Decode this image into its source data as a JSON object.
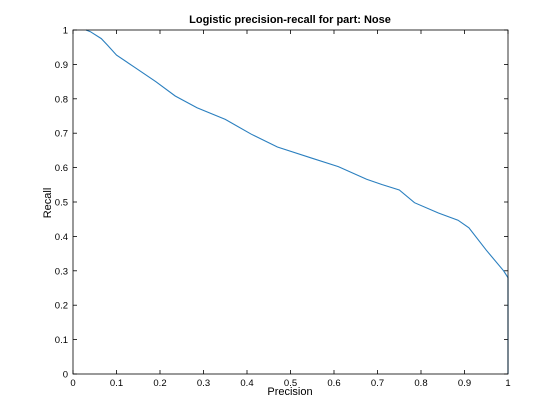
{
  "chart_data": {
    "type": "line",
    "title": "Logistic precision-recall for part: Nose",
    "xlabel": "Precision",
    "ylabel": "Recall",
    "xlim": [
      0,
      1
    ],
    "ylim": [
      0,
      1
    ],
    "xticks": [
      0,
      0.1,
      0.2,
      0.3,
      0.4,
      0.5,
      0.6,
      0.7,
      0.8,
      0.9,
      1
    ],
    "xtick_labels": [
      "0",
      "0.1",
      "0.2",
      "0.3",
      "0.4",
      "0.5",
      "0.6",
      "0.7",
      "0.8",
      "0.9",
      "1"
    ],
    "yticks": [
      0,
      0.1,
      0.2,
      0.3,
      0.4,
      0.5,
      0.6,
      0.7,
      0.8,
      0.9,
      1
    ],
    "ytick_labels": [
      "0",
      "0.1",
      "0.2",
      "0.3",
      "0.4",
      "0.5",
      "0.6",
      "0.7",
      "0.8",
      "0.9",
      "1"
    ],
    "grid": false,
    "series": [
      {
        "color": "#2a7fbf",
        "x": [
          0.03,
          0.04,
          0.065,
          0.08,
          0.1,
          0.14,
          0.19,
          0.235,
          0.285,
          0.35,
          0.41,
          0.47,
          0.55,
          0.61,
          0.675,
          0.71,
          0.75,
          0.785,
          0.84,
          0.885,
          0.91,
          0.95,
          0.99,
          1.0,
          1.0
        ],
        "y": [
          1.0,
          0.995,
          0.975,
          0.955,
          0.927,
          0.893,
          0.85,
          0.808,
          0.774,
          0.74,
          0.697,
          0.66,
          0.627,
          0.603,
          0.566,
          0.551,
          0.535,
          0.498,
          0.468,
          0.447,
          0.425,
          0.36,
          0.3,
          0.28,
          0.0
        ]
      }
    ]
  }
}
